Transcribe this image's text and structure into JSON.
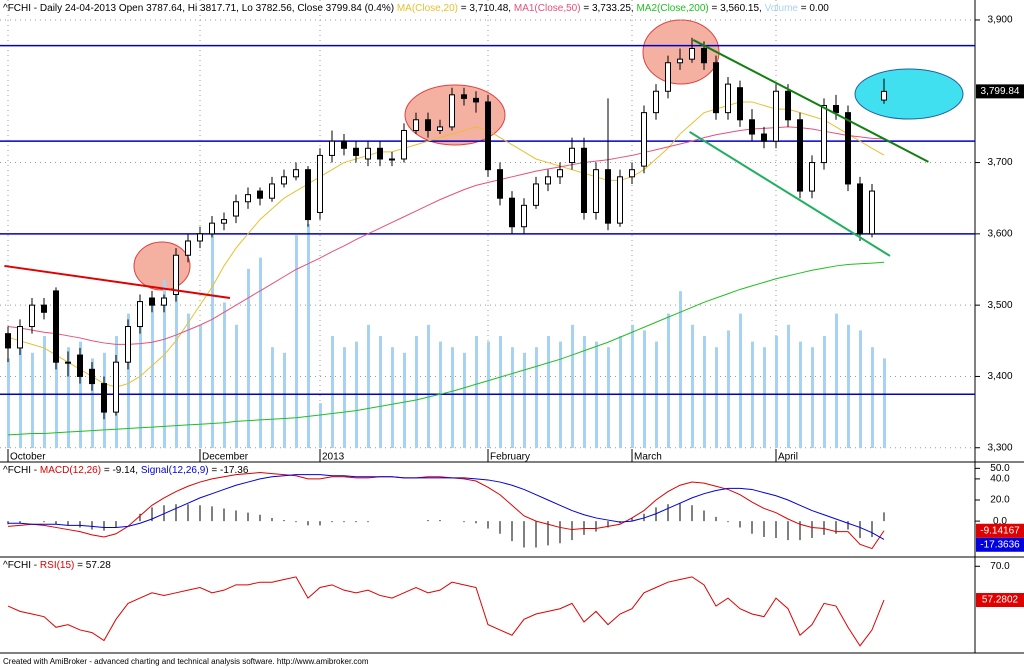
{
  "chart_data": [
    {
      "type": "candlestick",
      "title": "^FCHI - Daily 24-04-2013 Open 3787.64, Hi 3817.71, Lo 3782.56, Close 3799.84 (0.4%) ",
      "categories": [
        "October",
        null,
        null,
        null,
        null,
        null,
        null,
        null,
        null,
        null,
        null,
        null,
        null,
        null,
        null,
        null,
        "December",
        null,
        null,
        null,
        null,
        null,
        null,
        null,
        null,
        null,
        "2013",
        null,
        null,
        null,
        null,
        null,
        null,
        null,
        null,
        null,
        null,
        null,
        null,
        null,
        "February",
        null,
        null,
        null,
        null,
        null,
        null,
        null,
        null,
        null,
        null,
        null,
        "March",
        null,
        null,
        null,
        null,
        null,
        null,
        null,
        null,
        null,
        null,
        null,
        "April",
        null,
        null,
        null,
        null,
        null,
        null,
        null,
        null,
        null
      ],
      "open": [
        3460,
        3440,
        3470,
        3500,
        3520,
        3420,
        3430,
        3410,
        3390,
        3350,
        3420,
        3470,
        3510,
        3500,
        3515,
        3570,
        3590,
        3600,
        3615,
        3625,
        3645,
        3660,
        3650,
        3670,
        3680,
        3690,
        3630,
        3710,
        3730,
        3720,
        3705,
        3720,
        3705,
        3705,
        3745,
        3760,
        3745,
        3750,
        3795,
        3790,
        3785,
        3690,
        3650,
        3610,
        3640,
        3670,
        3680,
        3700,
        3720,
        3630,
        3690,
        3615,
        3680,
        3695,
        3770,
        3800,
        3840,
        3845,
        3860,
        3840,
        3770,
        3805,
        3760,
        3740,
        3730,
        3800,
        3760,
        3660,
        3700,
        3780,
        3770,
        3670,
        3600,
        3787.64
      ],
      "high": [
        3470,
        3480,
        3510,
        3510,
        3525,
        3435,
        3440,
        3420,
        3400,
        3430,
        3480,
        3515,
        3520,
        3515,
        3580,
        3600,
        3610,
        3625,
        3630,
        3655,
        3665,
        3665,
        3680,
        3690,
        3700,
        3695,
        3720,
        3745,
        3740,
        3730,
        3730,
        3730,
        3715,
        3755,
        3770,
        3770,
        3760,
        3805,
        3805,
        3800,
        3795,
        3700,
        3660,
        3650,
        3680,
        3690,
        3700,
        3735,
        3735,
        3700,
        3790,
        3690,
        3700,
        3780,
        3810,
        3850,
        3860,
        3875,
        3870,
        3850,
        3820,
        3815,
        3775,
        3750,
        3810,
        3810,
        3770,
        3710,
        3790,
        3795,
        3780,
        3680,
        3670,
        3817.71
      ],
      "low": [
        3420,
        3430,
        3460,
        3480,
        3410,
        3400,
        3390,
        3380,
        3340,
        3345,
        3410,
        3460,
        3490,
        3490,
        3505,
        3560,
        3580,
        3595,
        3605,
        3615,
        3635,
        3640,
        3645,
        3665,
        3675,
        3610,
        3620,
        3700,
        3710,
        3700,
        3695,
        3695,
        3695,
        3700,
        3740,
        3735,
        3740,
        3745,
        3780,
        3770,
        3680,
        3640,
        3600,
        3600,
        3635,
        3660,
        3670,
        3690,
        3620,
        3620,
        3605,
        3610,
        3670,
        3685,
        3760,
        3790,
        3830,
        3840,
        3830,
        3760,
        3760,
        3750,
        3730,
        3720,
        3720,
        3750,
        3650,
        3650,
        3690,
        3760,
        3660,
        3590,
        3595,
        3782.56
      ],
      "close": [
        3440,
        3470,
        3500,
        3490,
        3420,
        3420,
        3400,
        3390,
        3350,
        3420,
        3470,
        3505,
        3500,
        3510,
        3570,
        3590,
        3600,
        3615,
        3620,
        3645,
        3655,
        3650,
        3670,
        3680,
        3690,
        3620,
        3710,
        3730,
        3720,
        3710,
        3720,
        3705,
        3705,
        3745,
        3760,
        3745,
        3750,
        3795,
        3790,
        3785,
        3690,
        3650,
        3610,
        3640,
        3670,
        3680,
        3690,
        3720,
        3630,
        3690,
        3615,
        3680,
        3690,
        3770,
        3800,
        3840,
        3845,
        3860,
        3840,
        3770,
        3810,
        3760,
        3740,
        3730,
        3800,
        3760,
        3660,
        3700,
        3780,
        3770,
        3670,
        3600,
        3660,
        3799.84
      ],
      "close_value_label": "3,799.84",
      "ylim": [
        3280,
        3928
      ],
      "yticks": [
        {
          "value": 3300,
          "label": "3,300"
        },
        {
          "value": 3400,
          "label": "3,400"
        },
        {
          "value": 3500,
          "label": "3,500"
        },
        {
          "value": 3600,
          "label": "3,600"
        },
        {
          "value": 3700,
          "label": "3,700"
        },
        {
          "value": 3900,
          "label": "3,900"
        }
      ],
      "grid": true,
      "series": [
        {
          "name": "MA(Close,20)",
          "color": "#e8c030",
          "header_text": " = 3,710.48, ",
          "values": [
            3455,
            3450,
            3445,
            3440,
            3430,
            3420,
            3410,
            3400,
            3390,
            3385,
            3390,
            3400,
            3415,
            3430,
            3450,
            3475,
            3500,
            3525,
            3555,
            3580,
            3600,
            3620,
            3635,
            3650,
            3660,
            3670,
            3680,
            3690,
            3700,
            3705,
            3710,
            3715,
            3715,
            3720,
            3725,
            3730,
            3735,
            3740,
            3745,
            3750,
            3745,
            3735,
            3725,
            3715,
            3705,
            3700,
            3695,
            3690,
            3685,
            3680,
            3675,
            3675,
            3680,
            3690,
            3705,
            3720,
            3740,
            3755,
            3770,
            3775,
            3780,
            3785,
            3785,
            3780,
            3775,
            3775,
            3770,
            3765,
            3760,
            3750,
            3740,
            3730,
            3720,
            3710.48
          ]
        },
        {
          "name": "MA1(Close,50)",
          "color": "#e8507a",
          "header_text": " = 3,733.25, ",
          "values": [
            3470,
            3468,
            3465,
            3462,
            3460,
            3457,
            3454,
            3450,
            3447,
            3445,
            3445,
            3446,
            3448,
            3452,
            3458,
            3465,
            3472,
            3480,
            3490,
            3500,
            3510,
            3520,
            3530,
            3540,
            3550,
            3558,
            3566,
            3575,
            3583,
            3592,
            3600,
            3608,
            3616,
            3624,
            3632,
            3640,
            3648,
            3655,
            3662,
            3668,
            3672,
            3676,
            3680,
            3684,
            3688,
            3691,
            3694,
            3697,
            3700,
            3702,
            3704,
            3707,
            3710,
            3714,
            3718,
            3722,
            3726,
            3730,
            3735,
            3739,
            3742,
            3745,
            3747,
            3748,
            3749,
            3750,
            3749,
            3747,
            3744,
            3741,
            3738,
            3736,
            3734,
            3733.25
          ]
        },
        {
          "name": "MA2(Close,200)",
          "color": "#20c020",
          "header_text": " = 3,560.15, ",
          "values": [
            3318,
            3319,
            3320,
            3320,
            3321,
            3322,
            3323,
            3324,
            3325,
            3326,
            3327,
            3328,
            3329,
            3330,
            3331,
            3332,
            3333,
            3334,
            3335,
            3337,
            3338,
            3339,
            3340,
            3341,
            3342,
            3344,
            3346,
            3348,
            3350,
            3352,
            3355,
            3358,
            3361,
            3364,
            3367,
            3371,
            3375,
            3379,
            3384,
            3389,
            3394,
            3399,
            3404,
            3409,
            3414,
            3419,
            3424,
            3430,
            3436,
            3442,
            3448,
            3455,
            3462,
            3469,
            3476,
            3483,
            3490,
            3497,
            3504,
            3510,
            3516,
            3522,
            3527,
            3532,
            3537,
            3541,
            3545,
            3549,
            3552,
            3555,
            3557,
            3558,
            3559,
            3560.15
          ]
        }
      ],
      "volume": {
        "name": "Volume",
        "color": "#a8d2f2",
        "header_text": " = 0.00",
        "ylim": [
          0,
          400
        ],
        "values": [
          80,
          90,
          85,
          100,
          110,
          90,
          95,
          80,
          85,
          100,
          120,
          110,
          130,
          150,
          140,
          120,
          110,
          200,
          130,
          110,
          160,
          170,
          90,
          85,
          190,
          200,
          40,
          100,
          90,
          95,
          110,
          100,
          90,
          85,
          100,
          110,
          95,
          90,
          85,
          100,
          95,
          100,
          90,
          85,
          90,
          100,
          95,
          110,
          100,
          95,
          90,
          100,
          110,
          105,
          95,
          120,
          140,
          110,
          100,
          90,
          105,
          120,
          95,
          90,
          100,
          110,
          95,
          90,
          100,
          120,
          110,
          105,
          90,
          80
        ]
      },
      "hlines": {
        "color": "#0000cc",
        "values": [
          3864,
          3730,
          3600,
          3375
        ]
      },
      "trendlines": [
        {
          "color": "#e00000",
          "x": [
            -0.3,
            18.5
          ],
          "y": [
            3555,
            3510
          ]
        },
        {
          "color": "#108010",
          "x": [
            57.1,
            76.7
          ],
          "y": [
            3872,
            3701
          ]
        },
        {
          "color": "#20b060",
          "x": [
            56.8,
            73.5
          ],
          "y": [
            3743,
            3569
          ]
        }
      ]
    },
    {
      "type": "macd",
      "prefix": "^FCHI - ",
      "ylim": [
        -34,
        56
      ],
      "yticks": [
        {
          "value": 50,
          "label": "50.0"
        },
        {
          "value": 40,
          "label": "40.0"
        },
        {
          "value": 20,
          "label": "20.0"
        },
        {
          "value": 0,
          "label": "0.0"
        }
      ],
      "histogram_color": "#000000",
      "series": [
        {
          "name": "MACD(12,26)",
          "color": "#e00000",
          "header_text": " = -9.14, ",
          "value_label": "-9.14167",
          "values": [
            -5,
            -4,
            -3,
            -4,
            -6,
            -8,
            -10,
            -13,
            -15,
            -12,
            -5,
            5,
            15,
            22,
            28,
            33,
            37,
            40,
            42,
            44,
            45,
            46,
            45,
            44,
            43,
            40,
            40,
            42,
            42,
            41,
            41,
            42,
            42,
            41,
            41,
            42,
            42,
            41,
            40,
            38,
            32,
            25,
            15,
            5,
            0,
            -3,
            -6,
            -8,
            -7,
            -7,
            -5,
            -3,
            3,
            10,
            20,
            28,
            34,
            37,
            36,
            33,
            30,
            25,
            18,
            12,
            8,
            2,
            -3,
            -6,
            -7,
            -10,
            -10,
            -22,
            -26,
            -9.14167
          ]
        },
        {
          "name": "Signal(12,26,9)",
          "color": "#0000e0",
          "header_text": " = -17.36",
          "value_label": "-17.3636",
          "values": [
            -2,
            -2,
            -3,
            -3,
            -3,
            -4,
            -4,
            -5,
            -6,
            -6,
            -5,
            -2,
            2,
            7,
            12,
            17,
            22,
            26,
            30,
            34,
            37,
            40,
            42,
            43,
            44,
            44,
            44,
            43,
            43,
            42,
            42,
            42,
            42,
            41,
            41,
            41,
            41,
            41,
            41,
            40,
            39,
            37,
            34,
            30,
            25,
            20,
            15,
            10,
            6,
            3,
            1,
            -1,
            0,
            3,
            7,
            12,
            17,
            22,
            26,
            29,
            31,
            31,
            30,
            27,
            24,
            20,
            15,
            10,
            6,
            2,
            -2,
            -6,
            -11,
            -17.3636
          ]
        }
      ]
    },
    {
      "type": "line",
      "prefix": "^FCHI - ",
      "ylim": [
        37.3,
        73.5
      ],
      "yticks": [
        {
          "value": 70,
          "label": "70.0"
        }
      ],
      "series": [
        {
          "name": "RSI(15)",
          "color": "#e00000",
          "header_text": " = 57.28",
          "value_label": "57.2802",
          "values": [
            55,
            53,
            52,
            51,
            47,
            48,
            46,
            45,
            42,
            50,
            56,
            58,
            60,
            59,
            60,
            61,
            62,
            60,
            61,
            63,
            63,
            64,
            64,
            65,
            66,
            58,
            62,
            63,
            61,
            60,
            61,
            59,
            58,
            60,
            62,
            60,
            61,
            64,
            63,
            62,
            48,
            46,
            44,
            50,
            52,
            53,
            54,
            56,
            49,
            53,
            48,
            52,
            54,
            60,
            62,
            64,
            65,
            66,
            63,
            55,
            58,
            54,
            52,
            51,
            58,
            54,
            44,
            48,
            56,
            55,
            47,
            40,
            46,
            57.2802
          ]
        }
      ]
    }
  ],
  "footer": "Created with AmiBroker - advanced charting and technical analysis software. http://www.amibroker.com"
}
